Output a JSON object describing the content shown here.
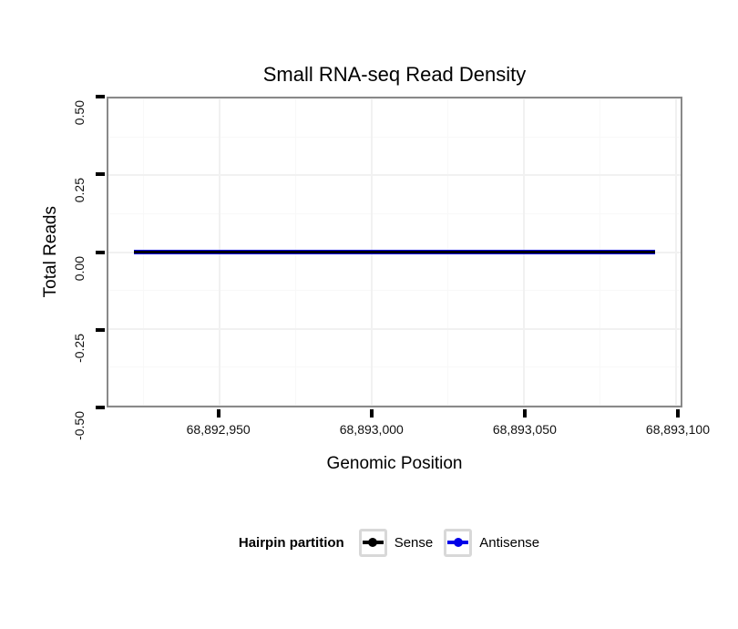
{
  "title": "Small RNA-seq Read Density",
  "colors": {
    "sense": "#000000",
    "antisense": "#0000e8",
    "panel_border": "#898989",
    "tick": "#000000",
    "grid_major": "#f1f1f1",
    "grid_minor": "#f8f8f8",
    "legend_key_border": "#d8d8d8",
    "background": "#ffffff"
  },
  "chart_data": {
    "type": "line",
    "title": "Small RNA-seq Read Density",
    "xlabel": "Genomic Position",
    "ylabel": "Total Reads",
    "x_domain": [
      68892913.5,
      68893101.5
    ],
    "ylim": [
      -0.5,
      0.5
    ],
    "grid": true,
    "x_ticks": [
      {
        "value": 68892950,
        "label": "68,892,950"
      },
      {
        "value": 68893000,
        "label": "68,893,000"
      },
      {
        "value": 68893050,
        "label": "68,893,050"
      },
      {
        "value": 68893100,
        "label": "68,893,100"
      }
    ],
    "y_ticks": [
      {
        "value": 0.5,
        "label": "0.50"
      },
      {
        "value": 0.25,
        "label": "0.25"
      },
      {
        "value": 0.0,
        "label": "0.00"
      },
      {
        "value": -0.25,
        "label": "-0.25"
      },
      {
        "value": -0.5,
        "label": "-0.50"
      }
    ],
    "x_minor": [
      68892925,
      68892975,
      68893025,
      68893075
    ],
    "y_minor": [
      0.375,
      0.125,
      -0.125,
      -0.375
    ],
    "series": [
      {
        "name": "Sense",
        "color": "#000000",
        "x": [
          68892922,
          68893093
        ],
        "y": [
          0,
          0
        ]
      },
      {
        "name": "Antisense",
        "color": "#0000e8",
        "x": [
          68892922,
          68893093
        ],
        "y": [
          0,
          0
        ]
      }
    ],
    "legend": {
      "title": "Hairpin partition",
      "position": "bottom",
      "entries": [
        {
          "label": "Sense",
          "color": "#000000"
        },
        {
          "label": "Antisense",
          "color": "#0000e8"
        }
      ]
    }
  }
}
